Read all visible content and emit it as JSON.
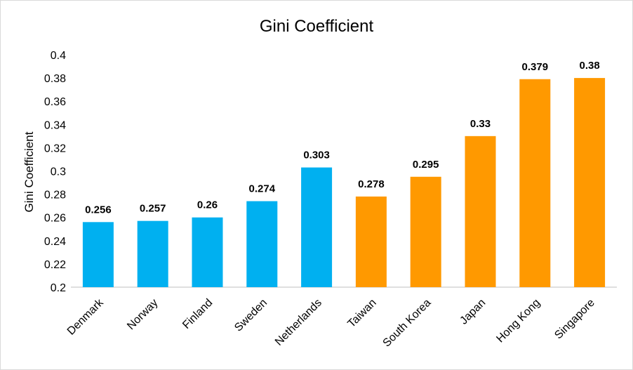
{
  "chart_data": {
    "type": "bar",
    "title": "Gini Coefficient",
    "xlabel": "",
    "ylabel": "Gini Coefficient",
    "ylim": [
      0.2,
      0.4
    ],
    "yticks": [
      "0.2",
      "0.22",
      "0.24",
      "0.26",
      "0.28",
      "0.3",
      "0.32",
      "0.34",
      "0.36",
      "0.38",
      "0.4"
    ],
    "categories": [
      "Denmark",
      "Norway",
      "Finland",
      "Sweden",
      "Netherlands",
      "Taiwan",
      "South Korea",
      "Japan",
      "Hong Kong",
      "Singapore"
    ],
    "values": [
      0.256,
      0.257,
      0.26,
      0.274,
      0.303,
      0.278,
      0.295,
      0.33,
      0.379,
      0.38
    ],
    "value_labels": [
      "0.256",
      "0.257",
      "0.26",
      "0.274",
      "0.303",
      "0.278",
      "0.295",
      "0.33",
      "0.379",
      "0.38"
    ],
    "bar_colors": [
      "#00b0f0",
      "#00b0f0",
      "#00b0f0",
      "#00b0f0",
      "#00b0f0",
      "#ff9900",
      "#ff9900",
      "#ff9900",
      "#ff9900",
      "#ff9900"
    ],
    "grid": false,
    "legend": "none"
  }
}
